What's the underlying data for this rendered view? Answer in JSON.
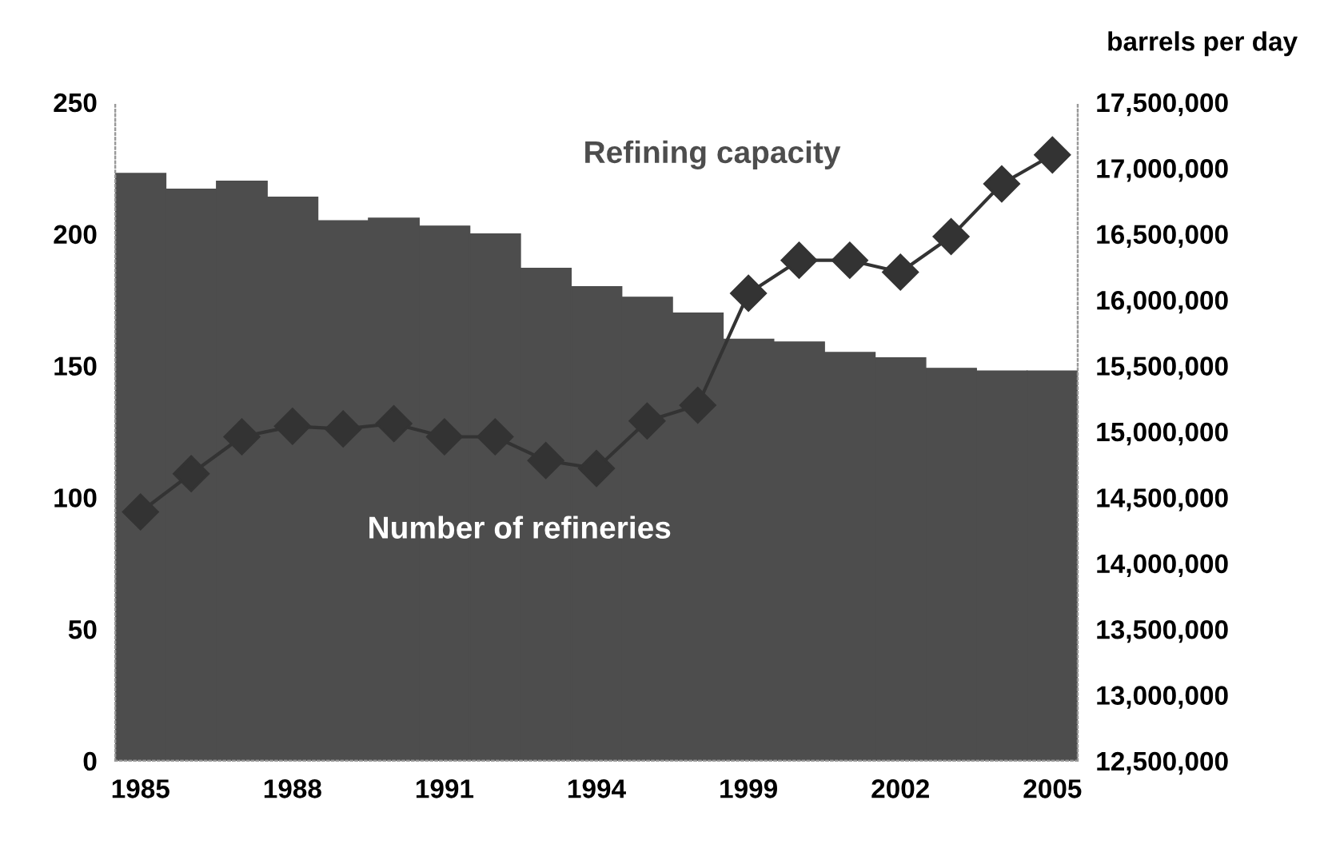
{
  "chart_data": {
    "type": "bar",
    "categories": [
      "1985",
      null,
      null,
      "1988",
      null,
      null,
      "1991",
      null,
      null,
      "1994",
      null,
      null,
      "1999",
      null,
      null,
      "2002",
      null,
      null,
      "2005"
    ],
    "series": [
      {
        "name": "Number of refineries",
        "color": "#4d4d4d",
        "values": [
          223,
          217,
          220,
          214,
          205,
          206,
          203,
          200,
          187,
          180,
          176,
          170,
          160,
          159,
          155,
          153,
          149,
          148,
          148
        ]
      },
      {
        "name": "Refining capacity",
        "type": "line",
        "axis": "y2",
        "color": "#333333",
        "marker": "diamond",
        "values": [
          14390000,
          14680000,
          14960000,
          15040000,
          15020000,
          15060000,
          14960000,
          14960000,
          14780000,
          14720000,
          15080000,
          15200000,
          16050000,
          16300000,
          16300000,
          16210000,
          16480000,
          16880000,
          17100000
        ]
      }
    ],
    "ylim": [
      0,
      250
    ],
    "yticks": [
      0,
      50,
      100,
      150,
      200,
      250
    ],
    "y2label": "barrels per day",
    "y2lim": [
      12500000,
      17500000
    ],
    "y2ticks": [
      {
        "value": 12500000,
        "label": "12,500,000"
      },
      {
        "value": 13000000,
        "label": "13,000,000"
      },
      {
        "value": 13500000,
        "label": "13,500,000"
      },
      {
        "value": 14000000,
        "label": "14,000,000"
      },
      {
        "value": 14500000,
        "label": "14,500,000"
      },
      {
        "value": 15000000,
        "label": "15,000,000"
      },
      {
        "value": 15500000,
        "label": "15,500,000"
      },
      {
        "value": 16000000,
        "label": "16,000,000"
      },
      {
        "value": 16500000,
        "label": "16,500,000"
      },
      {
        "value": 17000000,
        "label": "17,000,000"
      },
      {
        "value": 17500000,
        "label": "17,500,000"
      }
    ],
    "grid": false,
    "legend": false,
    "line_style": "solid"
  }
}
